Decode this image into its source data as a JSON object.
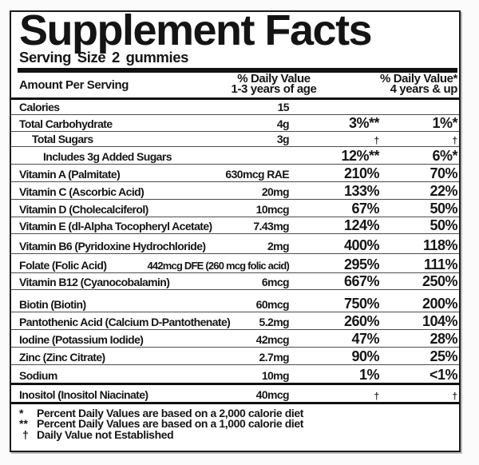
{
  "panel": {
    "title": "Supplement Facts",
    "serving_size": "Serving Size 2 gummies",
    "columns": {
      "amount_header": "Amount Per Serving",
      "dv1_line1": "% Daily Value",
      "dv1_line2": "1-3 years of age",
      "dv2_line1": "% Daily Value*",
      "dv2_line2": "4 years & up"
    },
    "rows": [
      {
        "name": "Calories",
        "amount": "15",
        "dv1": "",
        "dv2": "",
        "indent": 0
      },
      {
        "name": "Total Carbohydrate",
        "amount": "4g",
        "dv1": "3%**",
        "dv2": "1%*",
        "indent": 0
      },
      {
        "name": "Total Sugars",
        "amount": "3g",
        "dv1": "†",
        "dv2": "†",
        "indent": 1
      },
      {
        "name": "Includes 3g Added Sugars",
        "amount": "",
        "dv1": "12%**",
        "dv2": "6%*",
        "indent": 2
      },
      {
        "name": "Vitamin A (Palmitate)",
        "amount": "630mcg RAE",
        "dv1": "210%",
        "dv2": "70%",
        "indent": 0
      },
      {
        "name": "Vitamin C (Ascorbic Acid)",
        "amount": "20mg",
        "dv1": "133%",
        "dv2": "22%",
        "indent": 0
      },
      {
        "name": "Vitamin D (Cholecalciferol)",
        "amount": "10mcg",
        "dv1": "67%",
        "dv2": "50%",
        "indent": 0
      },
      {
        "name": "Vitamin E (dl-Alpha Tocopheryl Acetate)",
        "amount": "7.43mg",
        "dv1": "124%",
        "dv2": "50%",
        "indent": 0
      },
      {
        "name": "Vitamin B6 (Pyridoxine Hydrochloride)",
        "amount": "2mg",
        "dv1": "400%",
        "dv2": "118%",
        "indent": 0
      },
      {
        "name": "Folate (Folic Acid)",
        "amount": "442mcg DFE (260 mcg folic acid)",
        "dv1": "295%",
        "dv2": "111%",
        "indent": 0
      },
      {
        "name": "Vitamin B12 (Cyanocobalamin)",
        "amount": "6mcg",
        "dv1": "667%",
        "dv2": "250%",
        "indent": 0
      },
      {
        "name": "Biotin (Biotin)",
        "amount": "60mcg",
        "dv1": "750%",
        "dv2": "200%",
        "indent": 0
      },
      {
        "name": "Pantothenic Acid (Calcium D-Pantothenate)",
        "amount": "5.2mg",
        "dv1": "260%",
        "dv2": "104%",
        "indent": 0
      },
      {
        "name": "Iodine (Potassium Iodide)",
        "amount": "42mcg",
        "dv1": "47%",
        "dv2": "28%",
        "indent": 0
      },
      {
        "name": "Zinc (Zinc Citrate)",
        "amount": "2.7mg",
        "dv1": "90%",
        "dv2": "25%",
        "indent": 0
      },
      {
        "name": "Sodium",
        "amount": "10mg",
        "dv1": "1%",
        "dv2": "<1%",
        "indent": 0
      },
      {
        "name": "Inositol (Inositol Niacinate)",
        "amount": "40mcg",
        "dv1": "†",
        "dv2": "†",
        "indent": 0
      }
    ],
    "footnotes": [
      {
        "marker": "*",
        "text": "Percent Daily Values are based on a 2,000 calorie diet"
      },
      {
        "marker": "**",
        "text": "Percent Daily Values are based on a 1,000 calorie diet"
      },
      {
        "marker": "†",
        "text": "Daily Value not Established"
      }
    ],
    "colors": {
      "text": "#161616",
      "border": "#1c1c1c",
      "separator": "#4d4d4d",
      "bar": "#111111"
    }
  }
}
